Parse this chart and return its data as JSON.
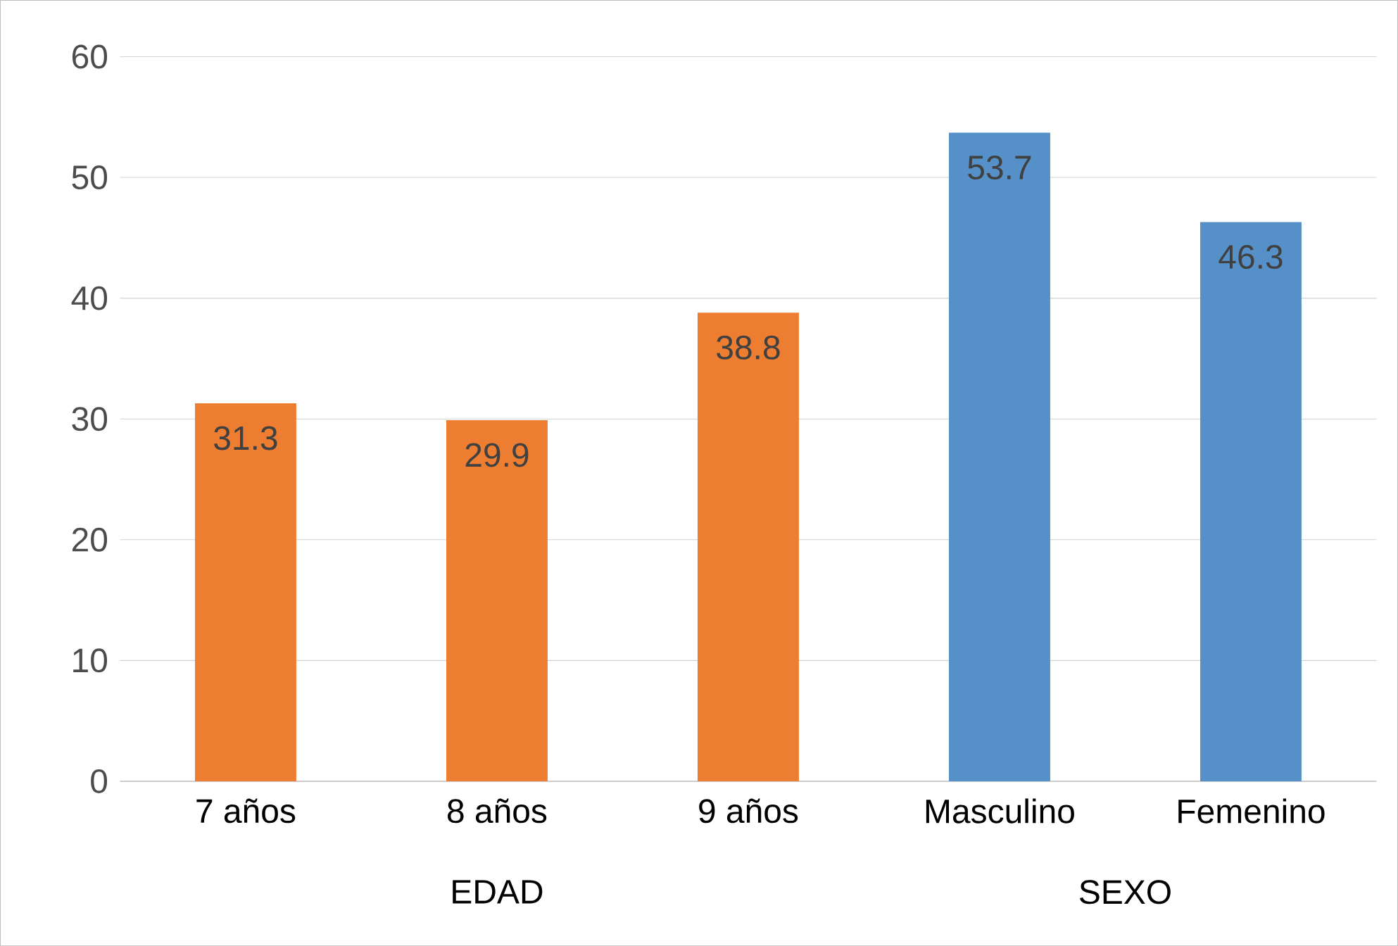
{
  "chart_data": {
    "type": "bar",
    "categories": [
      "7 años",
      "8 años",
      "9 años",
      "Masculino",
      "Femenino"
    ],
    "values": [
      31.3,
      29.9,
      38.8,
      53.7,
      46.3
    ],
    "colors": [
      "#ed7d31",
      "#ed7d31",
      "#ed7d31",
      "#5591c8",
      "#5591c8"
    ],
    "ylim": [
      0,
      60
    ],
    "yticks": [
      0,
      10,
      20,
      30,
      40,
      50,
      60
    ],
    "grid": "y",
    "data_labels": true,
    "annotations": [
      "EDAD",
      "SEXO"
    ]
  }
}
